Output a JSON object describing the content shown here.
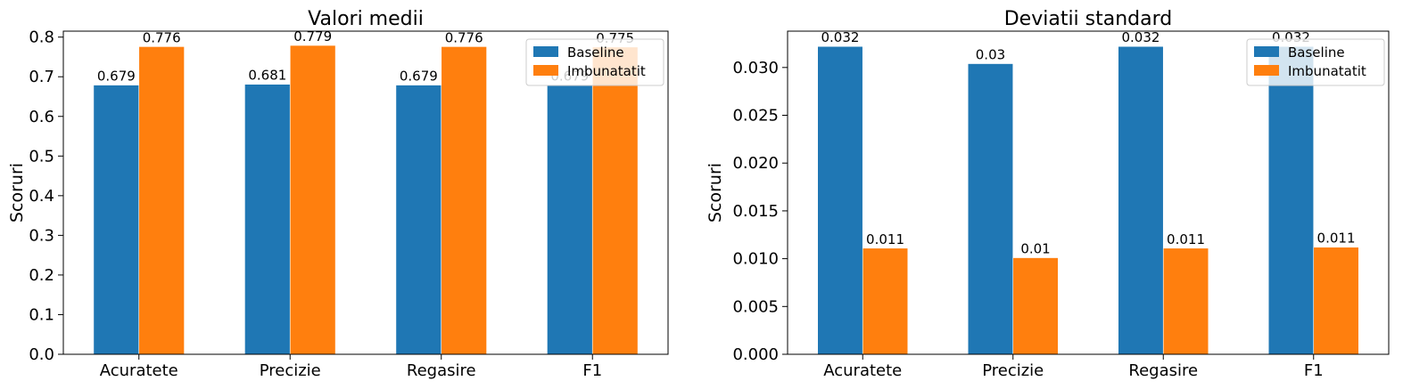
{
  "chart_data": [
    {
      "type": "bar",
      "title": "Valori medii",
      "xlabel": "",
      "ylabel": "Scoruri",
      "categories": [
        "Acuratete",
        "Precizie",
        "Regasire",
        "F1"
      ],
      "series": [
        {
          "name": "Baseline",
          "color": "#1f77b4",
          "values": [
            0.679,
            0.681,
            0.679,
            0.679
          ],
          "labels": [
            "0.679",
            "0.681",
            "0.679",
            "0.679"
          ]
        },
        {
          "name": "Imbunatatit",
          "color": "#ff7f0e",
          "values": [
            0.776,
            0.779,
            0.776,
            0.775
          ],
          "labels": [
            "0.776",
            "0.779",
            "0.776",
            "0.775"
          ]
        }
      ],
      "ylim": [
        0,
        0.815
      ],
      "yticks": [
        "0.0",
        "0.1",
        "0.2",
        "0.3",
        "0.4",
        "0.5",
        "0.6",
        "0.7",
        "0.8"
      ],
      "ytick_values": [
        0,
        0.1,
        0.2,
        0.3,
        0.4,
        0.5,
        0.6,
        0.7,
        0.8
      ],
      "legend_position": "top-right",
      "grid": false
    },
    {
      "type": "bar",
      "title": "Deviatii standard",
      "xlabel": "",
      "ylabel": "Scoruri",
      "categories": [
        "Acuratete",
        "Precizie",
        "Regasire",
        "F1"
      ],
      "series": [
        {
          "name": "Baseline",
          "color": "#1f77b4",
          "values": [
            0.0322,
            0.0304,
            0.0322,
            0.0322
          ],
          "labels": [
            "0.032",
            "0.03",
            "0.032",
            "0.032"
          ]
        },
        {
          "name": "Imbunatatit",
          "color": "#ff7f0e",
          "values": [
            0.0111,
            0.0101,
            0.0111,
            0.0112
          ],
          "labels": [
            "0.011",
            "0.01",
            "0.011",
            "0.011"
          ]
        }
      ],
      "ylim": [
        0,
        0.0338
      ],
      "yticks": [
        "0.000",
        "0.005",
        "0.010",
        "0.015",
        "0.020",
        "0.025",
        "0.030"
      ],
      "ytick_values": [
        0,
        0.005,
        0.01,
        0.015,
        0.02,
        0.025,
        0.03
      ],
      "legend_position": "top-right",
      "grid": false
    }
  ]
}
